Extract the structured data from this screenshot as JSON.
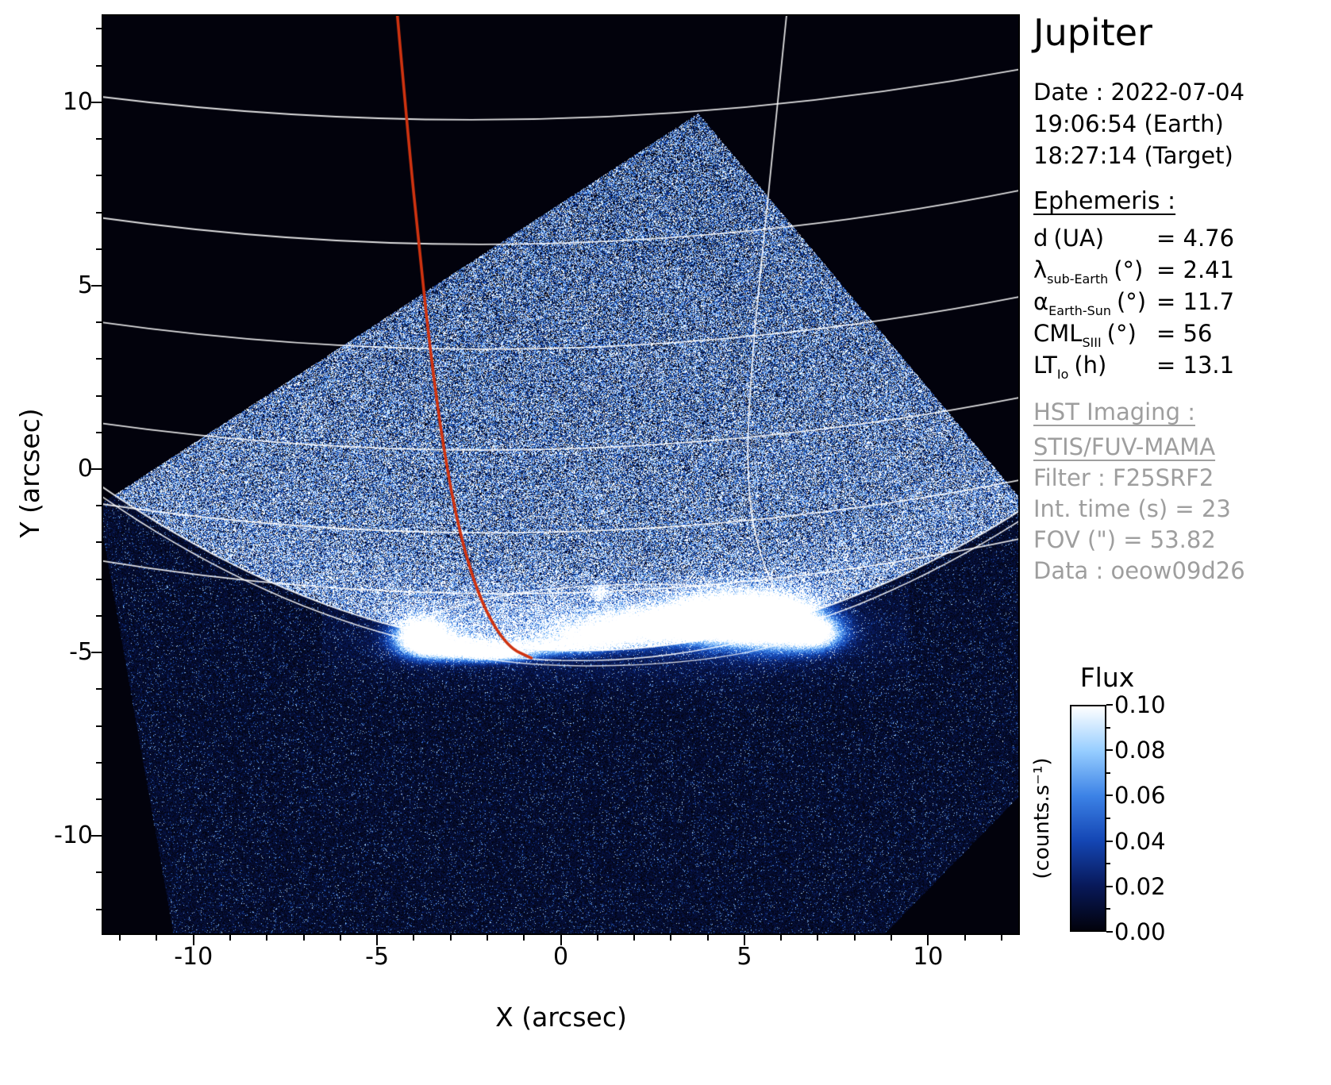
{
  "title": "Jupiter",
  "accent_color": "#cf3310",
  "info": {
    "date": "Date : 2022-07-04",
    "time_earth": "19:06:54 (Earth)",
    "time_target": "18:27:14 (Target)",
    "ephemeris_heading": "Ephemeris :",
    "ephemeris_rows": [
      {
        "base": "d",
        "sub": "",
        "unit": "(UA)",
        "value": "= 4.76"
      },
      {
        "base": "λ",
        "sub": "sub-Earth",
        "unit": "(°)",
        "value": "= 2.41"
      },
      {
        "base": "α",
        "sub": "Earth-Sun",
        "unit": "(°)",
        "value": "= 11.7"
      },
      {
        "base": "CML",
        "sub": "SIII",
        "unit": "(°)",
        "value": "= 56"
      },
      {
        "base": "LT",
        "sub": "Io",
        "unit": "(h)",
        "value": "= 13.1"
      }
    ],
    "hst_heading": "HST Imaging :",
    "hst_lines": [
      "STIS/FUV-MAMA",
      "Filter : F25SRF2",
      "Int. time (s) = 23",
      "FOV (\") = 53.82",
      "Data : oeow09d26"
    ]
  },
  "axes": {
    "xlabel": "X (arcsec)",
    "ylabel": "Y (arcsec)",
    "x_range": [
      -12.5,
      12.5
    ],
    "y_range": [
      -12.7,
      12.4
    ],
    "x_major_ticks": [
      -10,
      -5,
      0,
      5,
      10
    ],
    "y_major_ticks": [
      10,
      5,
      0,
      -5,
      -10
    ]
  },
  "colorbar": {
    "title": "Flux",
    "unit": "(counts.s⁻¹)",
    "tick_labels": [
      "0.10",
      "0.08",
      "0.06",
      "0.04",
      "0.02",
      "0.00"
    ],
    "gradient_stops": [
      "#02020c",
      "#08195a",
      "#1446b4",
      "#3c82e6",
      "#96cdff",
      "#ffffff"
    ]
  },
  "chart_data": {
    "type": "heatmap",
    "title": "Jupiter FUV image (HST/STIS) with planetary graticule and auroral emission",
    "xlabel": "X (arcsec)",
    "ylabel": "Y (arcsec)",
    "x_range": [
      -12.5,
      12.5
    ],
    "y_range": [
      -12.7,
      12.4
    ],
    "flux_scale_counts_per_s": [
      0.0,
      0.1
    ],
    "flux_colorbar_ticks": [
      0.0,
      0.02,
      0.04,
      0.06,
      0.08,
      0.1
    ],
    "observation": {
      "target": "Jupiter",
      "date": "2022-07-04",
      "time_earth": "19:06:54",
      "time_target": "18:27:14",
      "d_UA": 4.76,
      "lambda_sub_earth_deg": 2.41,
      "alpha_earth_sun_deg": 11.7,
      "CML_SIII_deg": 56,
      "LT_Io_h": 13.1,
      "instrument": "STIS/FUV-MAMA",
      "filter": "F25SRF2",
      "int_time_s": 23,
      "fov_arcsec": 53.82,
      "data_id": "oeow09d26"
    },
    "features": {
      "detector_fov_polygon_arcsec": [
        [
          3.75,
          9.7
        ],
        [
          12.6,
          -0.9
        ],
        [
          12.6,
          -8.8
        ],
        [
          8.6,
          -12.9
        ],
        [
          -10.5,
          -12.9
        ],
        [
          -12.6,
          -1.0
        ]
      ],
      "limb_minimum_y_arcsec": -5.2,
      "auroral_main_emission": {
        "y_arcsec": -4.4,
        "x_extent_arcsec": [
          -4.5,
          7.5
        ]
      },
      "brightest_patches_x_arcsec": [
        -3.7,
        4.3,
        5.8
      ],
      "marked_meridian": {
        "color": "#cf3310",
        "top_x_arcsec": -4.45,
        "end_point_arcsec": [
          -0.8,
          -5.15
        ]
      },
      "graticule_color": "#ffffff"
    }
  }
}
